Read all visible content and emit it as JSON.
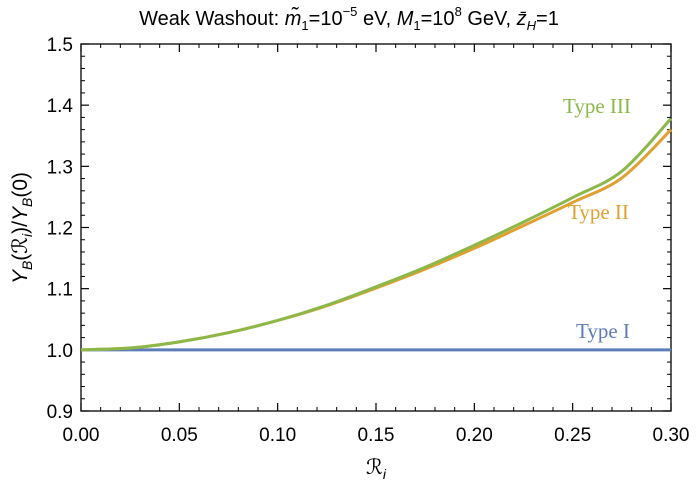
{
  "chart_data": {
    "type": "line",
    "title": "Weak Washout: m̃₁=10⁻⁵ eV, M₁=10⁸ GeV, z̄_H=1",
    "title_parts": {
      "prefix": "Weak Washout: ",
      "m_symbol": "m̃",
      "m_sub": "1",
      "m_eq": "=10",
      "m_exp": "−5",
      "m_unit": " eV, ",
      "M_symbol": "M",
      "M_sub": "1",
      "M_eq": "=10",
      "M_exp": "8",
      "M_unit": " GeV, ",
      "z_symbol": "z̄",
      "z_sub": "H",
      "z_eq": "=1"
    },
    "xlabel": "ℛ_i",
    "xlabel_parts": {
      "symbol": "ℛ",
      "sub": "i"
    },
    "ylabel": "Y_B(ℛ_i)/Y_B(0)",
    "ylabel_parts": {
      "Y1": "Y",
      "s1": "B",
      "mid": "(ℛ",
      "s2": "i",
      "close": ")/",
      "Y2": "Y",
      "s3": "B",
      "end": "(0)"
    },
    "xlim": [
      0.0,
      0.3
    ],
    "ylim": [
      0.9,
      1.5
    ],
    "xticks": [
      "0.00",
      "0.05",
      "0.10",
      "0.15",
      "0.20",
      "0.25",
      "0.30"
    ],
    "yticks": [
      "0.9",
      "1.0",
      "1.1",
      "1.2",
      "1.3",
      "1.4",
      "1.5"
    ],
    "grid": false,
    "x": [
      0.0,
      0.025,
      0.05,
      0.075,
      0.1,
      0.125,
      0.15,
      0.175,
      0.2,
      0.225,
      0.25,
      0.275,
      0.3
    ],
    "series": [
      {
        "name": "Type I",
        "label": "Type I",
        "color": "#5b7cb8",
        "values": [
          1.0,
          1.0,
          1.0,
          1.0,
          1.0,
          1.0,
          1.0,
          1.0,
          1.0,
          1.0,
          1.0,
          1.0,
          1.0
        ]
      },
      {
        "name": "Type II",
        "label": "Type II",
        "color": "#e0a030",
        "values": [
          1.0,
          1.003,
          1.013,
          1.028,
          1.048,
          1.072,
          1.101,
          1.132,
          1.166,
          1.203,
          1.241,
          1.281,
          1.36
        ]
      },
      {
        "name": "Type III",
        "label": "Type III",
        "color": "#8cb84a",
        "values": [
          1.0,
          1.003,
          1.013,
          1.028,
          1.048,
          1.073,
          1.103,
          1.135,
          1.171,
          1.209,
          1.249,
          1.292,
          1.378
        ]
      }
    ]
  }
}
